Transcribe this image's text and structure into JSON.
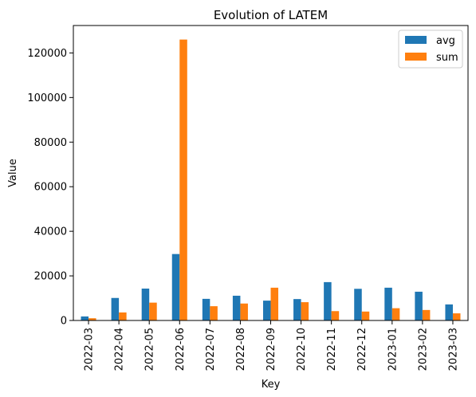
{
  "chart_data": {
    "type": "bar",
    "title": "Evolution of LATEM",
    "xlabel": "Key",
    "ylabel": "Value",
    "categories": [
      "2022-03",
      "2022-04",
      "2022-05",
      "2022-06",
      "2022-07",
      "2022-08",
      "2022-09",
      "2022-10",
      "2022-11",
      "2022-12",
      "2023-01",
      "2023-02",
      "2023-03"
    ],
    "series": [
      {
        "name": "avg",
        "color": "#1f77b4",
        "values": [
          1800,
          10100,
          14300,
          29800,
          9700,
          11100,
          8900,
          9600,
          17200,
          14200,
          14700,
          12900,
          7200
        ]
      },
      {
        "name": "sum",
        "color": "#ff7f0e",
        "values": [
          1000,
          3600,
          8000,
          126000,
          6400,
          7600,
          14700,
          8200,
          4200,
          4000,
          5500,
          4700,
          3200
        ]
      }
    ],
    "ylim": [
      0,
      132300
    ],
    "yticks": [
      0,
      20000,
      40000,
      60000,
      80000,
      100000,
      120000
    ],
    "ytick_labels": [
      "0",
      "20000",
      "40000",
      "60000",
      "80000",
      "100000",
      "120000"
    ],
    "grid": false,
    "legend_position": "top-right"
  }
}
